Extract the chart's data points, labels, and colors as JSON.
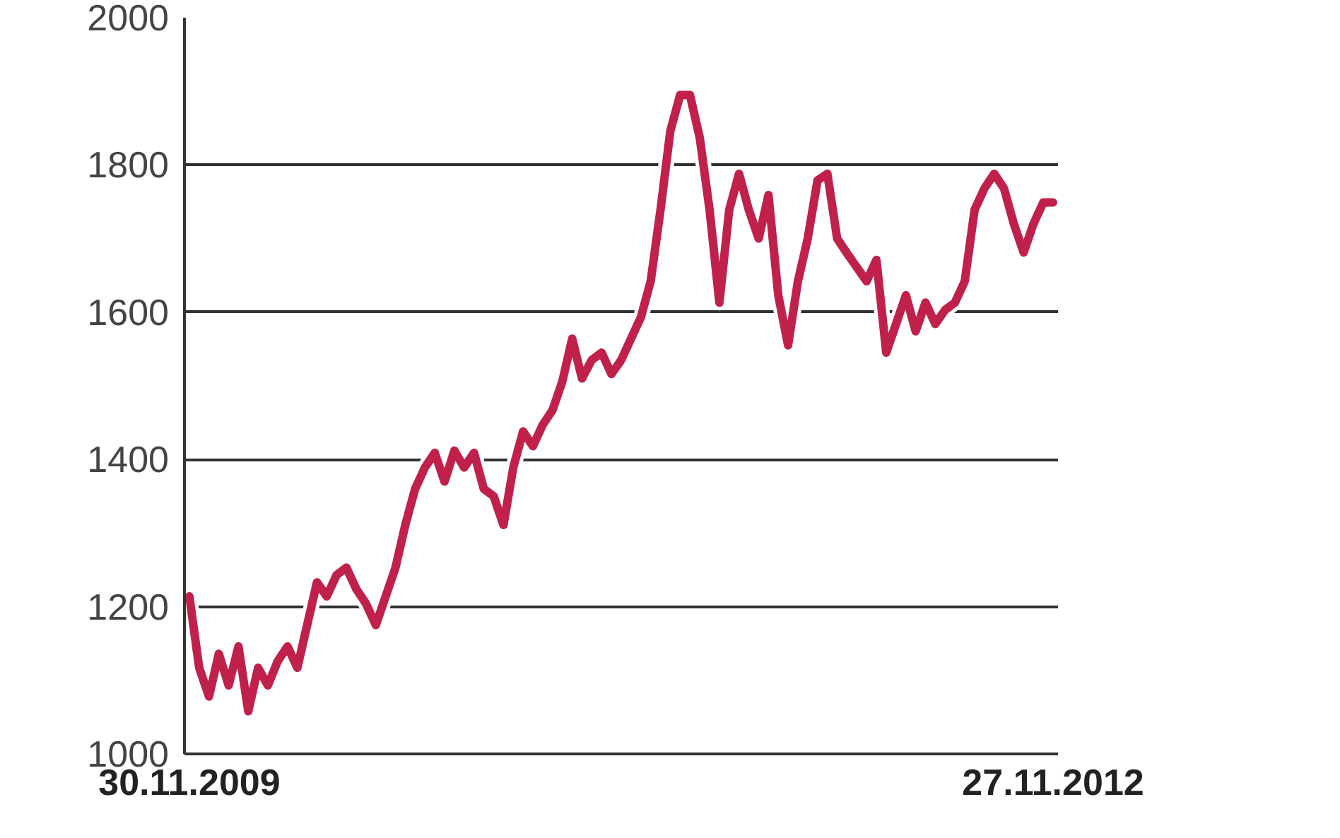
{
  "chart_data": {
    "type": "line",
    "categories": [
      "30.11.2009",
      null,
      null,
      null,
      null,
      null,
      null,
      null,
      null,
      null,
      null,
      null,
      null,
      null,
      null,
      null,
      null,
      null,
      null,
      null,
      null,
      null,
      null,
      null,
      null,
      null,
      null,
      null,
      null,
      null,
      null,
      null,
      null,
      null,
      null,
      null,
      null,
      null,
      null,
      null,
      null,
      null,
      null,
      null,
      null,
      null,
      null,
      null,
      null,
      null,
      null,
      null,
      null,
      null,
      null,
      null,
      null,
      null,
      null,
      null,
      null,
      null,
      null,
      null,
      null,
      null,
      null,
      null,
      null,
      null,
      null,
      null,
      null,
      null,
      null,
      null,
      null,
      null,
      null,
      null,
      null,
      null,
      null,
      null,
      null,
      null,
      null,
      null,
      "27.11.2012"
    ],
    "series": [
      {
        "color": "#c0214a",
        "values": [
          1214,
          1117,
          1078,
          1136,
          1093,
          1146,
          1058,
          1117,
          1093,
          1126,
          1146,
          1117,
          1175,
          1233,
          1214,
          1243,
          1253,
          1224,
          1204,
          1175,
          1214,
          1253,
          1311,
          1360,
          1389,
          1409,
          1370,
          1412,
          1389,
          1409,
          1360,
          1350,
          1311,
          1389,
          1438,
          1418,
          1447,
          1467,
          1506,
          1564,
          1510,
          1535,
          1545,
          1516,
          1535,
          1564,
          1593,
          1642,
          1739,
          1846,
          1895,
          1895,
          1837,
          1739,
          1613,
          1739,
          1788,
          1739,
          1700,
          1759,
          1623,
          1555,
          1642,
          1700,
          1779,
          1788,
          1700,
          1680,
          1661,
          1642,
          1671,
          1545,
          1584,
          1623,
          1574,
          1613,
          1584,
          1603,
          1613,
          1642,
          1739,
          1768,
          1788,
          1768,
          1720,
          1681,
          1720,
          1749,
          1749
        ]
      }
    ],
    "ylim": [
      1000,
      2000
    ],
    "yticks": [
      1000,
      1200,
      1400,
      1600,
      1800,
      2000
    ],
    "grid": "y",
    "line_style": "solid"
  }
}
